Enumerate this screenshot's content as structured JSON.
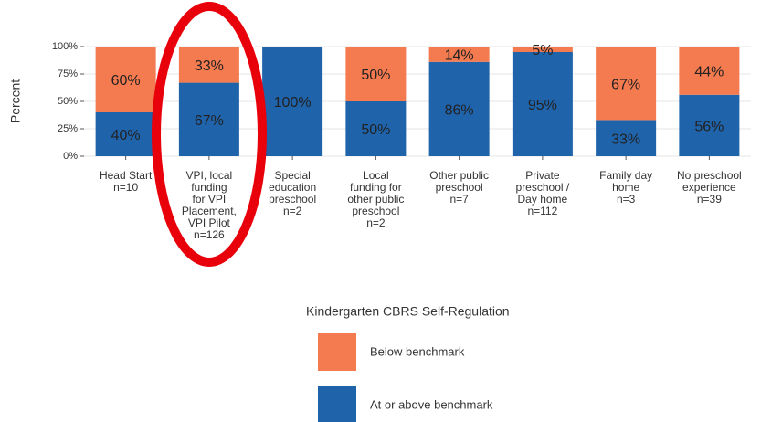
{
  "chart_data": {
    "type": "bar",
    "stacked": true,
    "categories": [
      "Head Start\nn=10",
      "VPI, local\nfunding\nfor VPI\nPlacement,\nVPI Pilot\nn=126",
      "Special\neducation\npreschool\nn=2",
      "Local\nfunding for\nother public\npreschool\nn=2",
      "Other public\npreschool\nn=7",
      "Private\npreschool /\nDay home\nn=112",
      "Family day\nhome\nn=3",
      "No preschool\nexperience\nn=39"
    ],
    "series": [
      {
        "name": "Below benchmark",
        "color": "#f47a50",
        "values": [
          60,
          33,
          0,
          50,
          14,
          5,
          67,
          44
        ],
        "value_labels": [
          "60%",
          "33%",
          null,
          "50%",
          "14%",
          "5%",
          "67%",
          "44%"
        ]
      },
      {
        "name": "At or above benchmark",
        "color": "#1f63ab",
        "values": [
          40,
          67,
          100,
          50,
          86,
          95,
          33,
          56
        ],
        "value_labels": [
          "40%",
          "67%",
          "100%",
          "50%",
          "86%",
          "95%",
          "33%",
          "56%"
        ]
      }
    ],
    "ylabel": "Percent",
    "ylim": [
      0,
      100
    ],
    "yticks": [
      {
        "value": 0,
        "label": "0%"
      },
      {
        "value": 25,
        "label": "25%"
      },
      {
        "value": 50,
        "label": "50%"
      },
      {
        "value": 75,
        "label": "75%"
      },
      {
        "value": 100,
        "label": "100%"
      }
    ],
    "grid": true,
    "legend_title": "Kindergarten CBRS Self-Regulation",
    "legend": "bottom"
  }
}
